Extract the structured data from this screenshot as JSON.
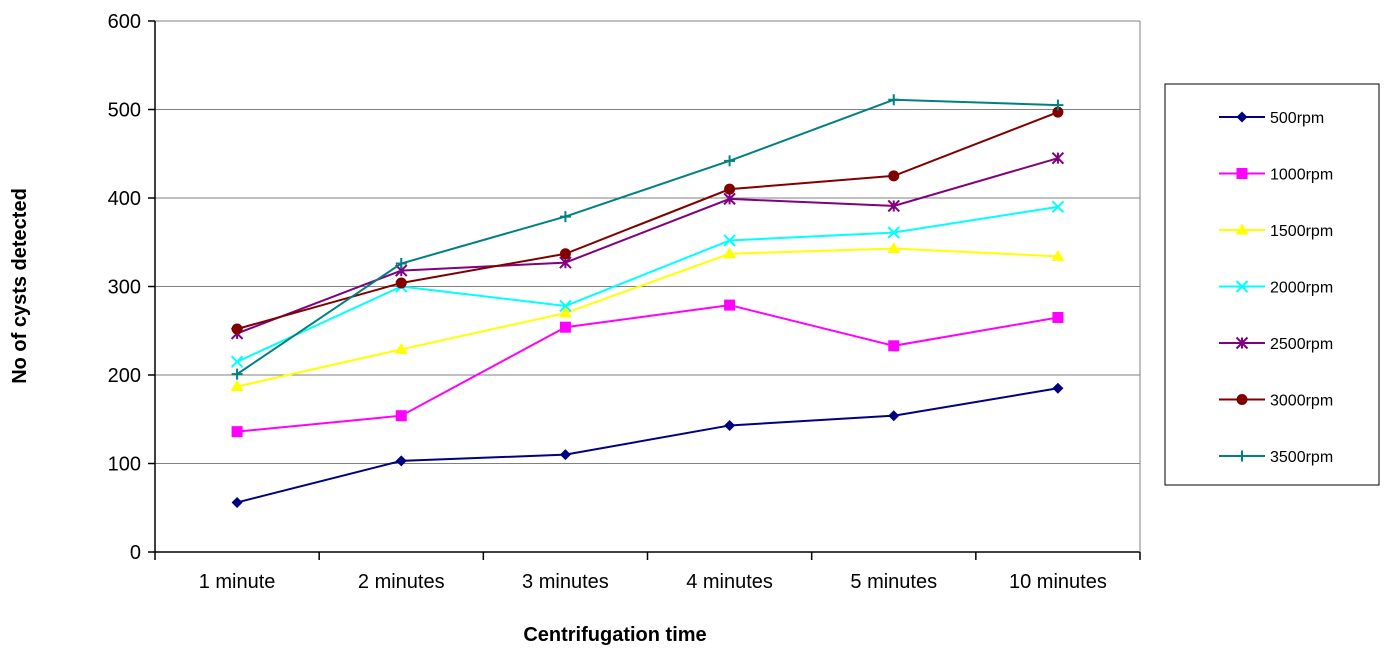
{
  "chart_data": {
    "type": "line",
    "title": "",
    "xlabel": "Centrifugation time",
    "ylabel": "No of cysts detected",
    "ylim": [
      0,
      600
    ],
    "yticks": [
      0,
      100,
      200,
      300,
      400,
      500,
      600
    ],
    "grid": true,
    "legend_position": "right",
    "categories": [
      "1 minute",
      "2 minutes",
      "3 minutes",
      "4 minutes",
      "5 minutes",
      "10 minutes"
    ],
    "series": [
      {
        "name": "500rpm",
        "color": "#000080",
        "marker": "diamond",
        "values": [
          56,
          103,
          110,
          143,
          154,
          185
        ]
      },
      {
        "name": "1000rpm",
        "color": "#FF00FF",
        "marker": "square",
        "values": [
          136,
          154,
          254,
          279,
          233,
          265
        ]
      },
      {
        "name": "1500rpm",
        "color": "#FFFF00",
        "marker": "triangle",
        "values": [
          187,
          229,
          270,
          337,
          343,
          334
        ]
      },
      {
        "name": "2000rpm",
        "color": "#00FFFF",
        "marker": "x",
        "values": [
          215,
          300,
          278,
          352,
          361,
          390
        ]
      },
      {
        "name": "2500rpm",
        "color": "#800080",
        "marker": "star",
        "values": [
          247,
          318,
          327,
          399,
          391,
          445
        ]
      },
      {
        "name": "3000rpm",
        "color": "#800000",
        "marker": "circle",
        "values": [
          252,
          304,
          337,
          410,
          425,
          497
        ]
      },
      {
        "name": "3500rpm",
        "color": "#008080",
        "marker": "plus",
        "values": [
          201,
          326,
          379,
          442,
          511,
          505
        ]
      }
    ]
  }
}
